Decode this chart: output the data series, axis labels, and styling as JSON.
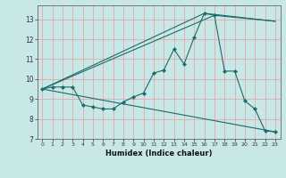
{
  "title": "",
  "xlabel": "Humidex (Indice chaleur)",
  "bg_color": "#c8e8e8",
  "grid_color": "#e8a8a8",
  "line_color": "#1a6b6b",
  "marker_color": "#1a6b6b",
  "xlim": [
    -0.5,
    23.5
  ],
  "ylim": [
    7.0,
    13.7
  ],
  "xticks": [
    0,
    1,
    2,
    3,
    4,
    5,
    6,
    7,
    8,
    9,
    10,
    11,
    12,
    13,
    14,
    15,
    16,
    17,
    18,
    19,
    20,
    21,
    22,
    23
  ],
  "yticks": [
    7,
    8,
    9,
    10,
    11,
    12,
    13
  ],
  "main_line": {
    "x": [
      0,
      1,
      2,
      3,
      4,
      5,
      6,
      7,
      8,
      9,
      10,
      11,
      12,
      13,
      14,
      15,
      16,
      17,
      18,
      19,
      20,
      21,
      22,
      23
    ],
    "y": [
      9.5,
      9.6,
      9.6,
      9.6,
      8.7,
      8.6,
      8.5,
      8.5,
      8.85,
      9.1,
      9.3,
      10.3,
      10.45,
      11.5,
      10.75,
      12.1,
      13.3,
      13.2,
      10.4,
      10.4,
      8.9,
      8.5,
      7.4,
      7.35
    ]
  },
  "extra_lines": [
    {
      "x": [
        0,
        23
      ],
      "y": [
        9.5,
        7.35
      ]
    },
    {
      "x": [
        0,
        16,
        23
      ],
      "y": [
        9.5,
        13.3,
        12.9
      ]
    },
    {
      "x": [
        0,
        17,
        23
      ],
      "y": [
        9.5,
        13.2,
        12.9
      ]
    }
  ]
}
